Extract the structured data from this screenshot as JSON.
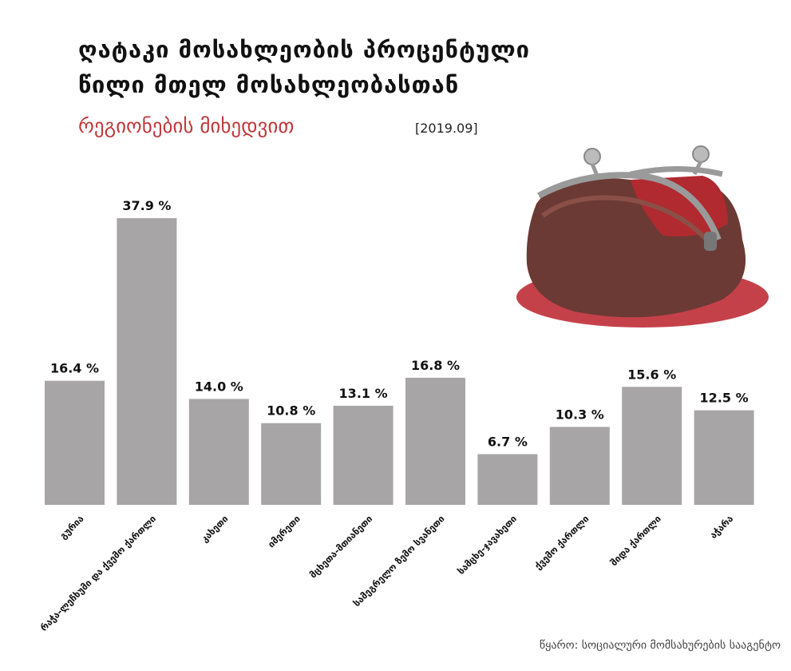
{
  "chart_data": {
    "type": "bar",
    "title": [
      "ღატაკი მოსახლეობის პროცენტული",
      "წილი მთელ მოსახლეობასთან"
    ],
    "subtitle": "რეგიონების მიხედვით",
    "date": "[2019.09]",
    "categories": [
      "გურია",
      "რაჭა-ლეჩხუმი და ქვემო ქართლი",
      "კახეთი",
      "იმერეთი",
      "მცხეთა-მთიანეთი",
      "სამეგრელო ზემო სვანეთი",
      "სამცხე-ჯავახეთი",
      "ქვემო ქართლი",
      "შიდა ქართლი",
      "აჭარა"
    ],
    "values": [
      16.4,
      37.9,
      14.0,
      10.8,
      13.1,
      16.8,
      6.7,
      10.3,
      15.6,
      12.5
    ],
    "value_labels": [
      "16.4 %",
      "37.9 %",
      "14.0 %",
      "10.8 %",
      "13.1 %",
      "16.8 %",
      "6.7 %",
      "10.3 %",
      "15.6 %",
      "12.5 %"
    ],
    "color": "#a7a5a6",
    "source": "წყარო: სოციალური მომსახურების სააგენტო"
  }
}
